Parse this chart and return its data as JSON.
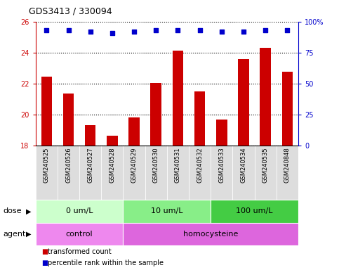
{
  "title": "GDS3413 / 330094",
  "samples": [
    "GSM240525",
    "GSM240526",
    "GSM240527",
    "GSM240528",
    "GSM240529",
    "GSM240530",
    "GSM240531",
    "GSM240532",
    "GSM240533",
    "GSM240534",
    "GSM240535",
    "GSM240848"
  ],
  "transformed_count": [
    22.45,
    21.35,
    19.35,
    18.65,
    19.85,
    22.05,
    24.15,
    21.5,
    19.7,
    23.6,
    24.3,
    22.75
  ],
  "percentile_rank": [
    93,
    93,
    92,
    91,
    92,
    93,
    93,
    93,
    92,
    92,
    93,
    93
  ],
  "bar_color": "#cc0000",
  "dot_color": "#0000cc",
  "ylim_left": [
    18,
    26
  ],
  "ylim_right": [
    0,
    100
  ],
  "yticks_left": [
    18,
    20,
    22,
    24,
    26
  ],
  "yticks_right": [
    0,
    25,
    50,
    75,
    100
  ],
  "yticklabels_right": [
    "0",
    "25",
    "50",
    "75",
    "100%"
  ],
  "dose_groups": [
    {
      "label": "0 um/L",
      "start": 0,
      "end": 4,
      "color": "#ccffcc"
    },
    {
      "label": "10 um/L",
      "start": 4,
      "end": 8,
      "color": "#88ee88"
    },
    {
      "label": "100 um/L",
      "start": 8,
      "end": 12,
      "color": "#44cc44"
    }
  ],
  "agent_groups": [
    {
      "label": "control",
      "start": 0,
      "end": 4,
      "color": "#ee88ee"
    },
    {
      "label": "homocysteine",
      "start": 4,
      "end": 12,
      "color": "#dd66dd"
    }
  ],
  "legend_items": [
    {
      "label": "transformed count",
      "color": "#cc0000"
    },
    {
      "label": "percentile rank within the sample",
      "color": "#0000cc"
    }
  ],
  "dose_label": "dose",
  "agent_label": "agent",
  "xticklabel_bg": "#dddddd",
  "plot_bg": "#ffffff"
}
